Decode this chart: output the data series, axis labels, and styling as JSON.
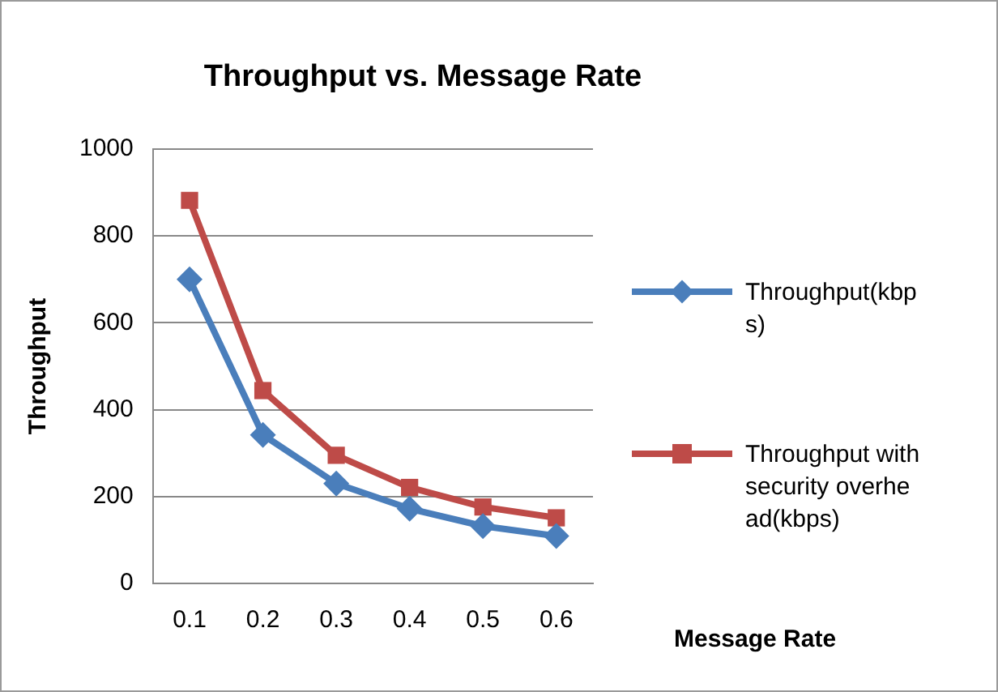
{
  "chart_data": {
    "type": "line",
    "title": "Throughput vs. Message Rate",
    "xlabel": "Message Rate",
    "ylabel": "Throughput",
    "categories": [
      "0.1",
      "0.2",
      "0.3",
      "0.4",
      "0.5",
      "0.6"
    ],
    "series": [
      {
        "name": "Throughput(kbps)",
        "color": "#4a7ebb",
        "marker": "diamond",
        "values": [
          700,
          342,
          230,
          172,
          132,
          109
        ]
      },
      {
        "name": "Throughput with security overhead(kbps)",
        "color": "#be4b48",
        "marker": "square",
        "values": [
          882,
          444,
          295,
          221,
          176,
          151
        ]
      }
    ],
    "ylim": [
      0,
      1000
    ],
    "yticks": [
      0,
      200,
      400,
      600,
      800,
      1000
    ],
    "grid": "y",
    "legend": "right",
    "line_style": "solid"
  }
}
